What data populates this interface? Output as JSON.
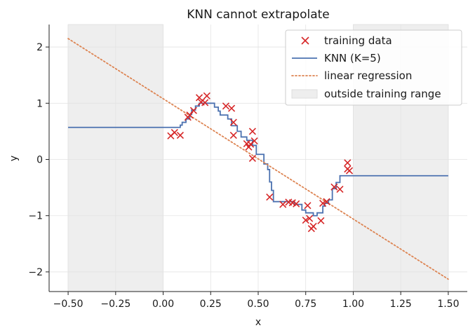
{
  "chart_data": {
    "type": "scatter",
    "title": "KNN cannot extrapolate",
    "xlabel": "x",
    "ylabel": "y",
    "xlim": [
      -0.6,
      1.6
    ],
    "ylim": [
      -2.35,
      2.4
    ],
    "grid": true,
    "legend_position": "top-right",
    "x_ticks": [
      -0.5,
      -0.25,
      0.0,
      0.25,
      0.5,
      0.75,
      1.0,
      1.25,
      1.5
    ],
    "x_tick_labels": [
      "−0.50",
      "−0.25",
      "0.00",
      "0.25",
      "0.50",
      "0.75",
      "1.00",
      "1.25",
      "1.50"
    ],
    "y_ticks": [
      -2,
      -1,
      0,
      1,
      2
    ],
    "y_tick_labels": [
      "−2",
      "−1",
      "0",
      "1",
      "2"
    ],
    "shaded_regions": [
      {
        "name": "outside training range",
        "x_from": -0.5,
        "x_to": 0.0,
        "color": "#eeeeee"
      },
      {
        "name": "outside training range",
        "x_from": 1.0,
        "x_to": 1.5,
        "color": "#eeeeee"
      }
    ],
    "series": [
      {
        "name": "training data",
        "type": "scatter",
        "marker": "x",
        "color": "#d62728",
        "points": [
          [
            0.04,
            0.42
          ],
          [
            0.06,
            0.48
          ],
          [
            0.09,
            0.43
          ],
          [
            0.13,
            0.75
          ],
          [
            0.14,
            0.79
          ],
          [
            0.16,
            0.87
          ],
          [
            0.19,
            1.1
          ],
          [
            0.2,
            1.02
          ],
          [
            0.22,
            1.01
          ],
          [
            0.23,
            1.13
          ],
          [
            0.33,
            0.95
          ],
          [
            0.36,
            0.91
          ],
          [
            0.37,
            0.66
          ],
          [
            0.37,
            0.43
          ],
          [
            0.44,
            0.28
          ],
          [
            0.45,
            0.22
          ],
          [
            0.46,
            0.27
          ],
          [
            0.47,
            0.5
          ],
          [
            0.47,
            0.02
          ],
          [
            0.48,
            0.33
          ],
          [
            0.56,
            -0.67
          ],
          [
            0.63,
            -0.8
          ],
          [
            0.66,
            -0.76
          ],
          [
            0.68,
            -0.77
          ],
          [
            0.7,
            -0.79
          ],
          [
            0.75,
            -1.08
          ],
          [
            0.76,
            -0.82
          ],
          [
            0.77,
            -1.05
          ],
          [
            0.78,
            -1.23
          ],
          [
            0.79,
            -1.19
          ],
          [
            0.83,
            -1.09
          ],
          [
            0.84,
            -0.78
          ],
          [
            0.86,
            -0.75
          ],
          [
            0.9,
            -0.49
          ],
          [
            0.93,
            -0.53
          ],
          [
            0.97,
            -0.06
          ],
          [
            0.97,
            -0.17
          ],
          [
            0.98,
            -0.2
          ]
        ]
      },
      {
        "name": "KNN (K=5)",
        "type": "step",
        "color": "#4c72b0",
        "points": [
          [
            -0.5,
            0.57
          ],
          [
            0.09,
            0.57
          ],
          [
            0.09,
            0.61
          ],
          [
            0.1,
            0.61
          ],
          [
            0.1,
            0.66
          ],
          [
            0.12,
            0.66
          ],
          [
            0.12,
            0.72
          ],
          [
            0.14,
            0.72
          ],
          [
            0.14,
            0.8
          ],
          [
            0.15,
            0.8
          ],
          [
            0.15,
            0.88
          ],
          [
            0.17,
            0.88
          ],
          [
            0.17,
            0.95
          ],
          [
            0.19,
            0.95
          ],
          [
            0.19,
            1.0
          ],
          [
            0.27,
            1.0
          ],
          [
            0.27,
            0.93
          ],
          [
            0.29,
            0.93
          ],
          [
            0.29,
            0.86
          ],
          [
            0.3,
            0.86
          ],
          [
            0.3,
            0.79
          ],
          [
            0.34,
            0.79
          ],
          [
            0.34,
            0.72
          ],
          [
            0.36,
            0.72
          ],
          [
            0.36,
            0.6
          ],
          [
            0.39,
            0.6
          ],
          [
            0.39,
            0.5
          ],
          [
            0.41,
            0.5
          ],
          [
            0.41,
            0.4
          ],
          [
            0.44,
            0.4
          ],
          [
            0.44,
            0.34
          ],
          [
            0.47,
            0.34
          ],
          [
            0.47,
            0.25
          ],
          [
            0.49,
            0.25
          ],
          [
            0.49,
            0.09
          ],
          [
            0.53,
            0.09
          ],
          [
            0.53,
            -0.08
          ],
          [
            0.55,
            -0.08
          ],
          [
            0.55,
            -0.18
          ],
          [
            0.56,
            -0.18
          ],
          [
            0.56,
            -0.4
          ],
          [
            0.57,
            -0.4
          ],
          [
            0.57,
            -0.55
          ],
          [
            0.58,
            -0.55
          ],
          [
            0.58,
            -0.75
          ],
          [
            0.69,
            -0.75
          ],
          [
            0.69,
            -0.8
          ],
          [
            0.73,
            -0.8
          ],
          [
            0.73,
            -0.9
          ],
          [
            0.75,
            -0.9
          ],
          [
            0.75,
            -0.95
          ],
          [
            0.79,
            -0.95
          ],
          [
            0.79,
            -1.0
          ],
          [
            0.81,
            -1.0
          ],
          [
            0.81,
            -0.95
          ],
          [
            0.84,
            -0.95
          ],
          [
            0.84,
            -0.83
          ],
          [
            0.85,
            -0.83
          ],
          [
            0.85,
            -0.78
          ],
          [
            0.87,
            -0.78
          ],
          [
            0.87,
            -0.72
          ],
          [
            0.89,
            -0.72
          ],
          [
            0.89,
            -0.52
          ],
          [
            0.91,
            -0.52
          ],
          [
            0.91,
            -0.41
          ],
          [
            0.93,
            -0.41
          ],
          [
            0.93,
            -0.29
          ],
          [
            1.5,
            -0.29
          ]
        ]
      },
      {
        "name": "linear regression",
        "type": "line",
        "style": "dotted",
        "color": "#dd8452",
        "points": [
          [
            -0.5,
            2.15
          ],
          [
            1.5,
            -2.13
          ]
        ]
      }
    ]
  }
}
